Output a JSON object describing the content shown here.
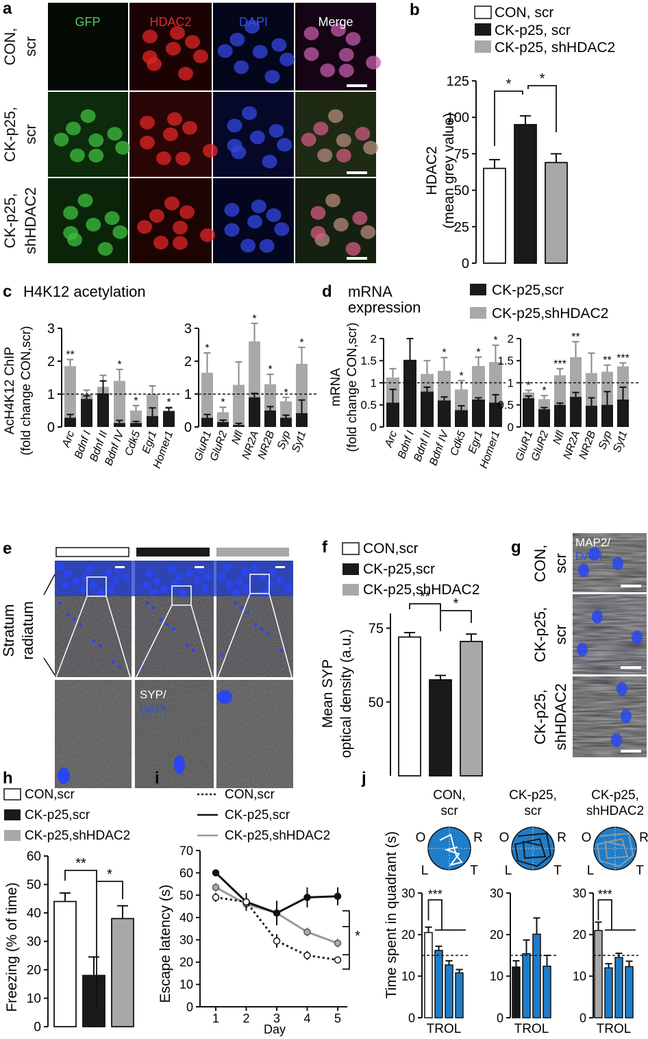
{
  "panel_labels": {
    "a": "a",
    "b": "b",
    "c": "c",
    "d": "d",
    "e": "e",
    "f": "f",
    "g": "g",
    "h": "h",
    "i": "i",
    "j": "j"
  },
  "panel_a": {
    "columns": [
      "GFP",
      "HDAC2",
      "DAPI",
      "Merge"
    ],
    "row_labels": [
      [
        "CON,",
        "scr"
      ],
      [
        "CK-p25,",
        "scr"
      ],
      [
        "CK-p25,",
        "shHDAC2"
      ]
    ],
    "colors": {
      "GFP": "#4fd14f",
      "HDAC2": "#e12a2a",
      "DAPI": "#3a4fd8",
      "Merge": "#ffffff"
    }
  },
  "legends": {
    "con_space": "CON, scr",
    "ck_space": "CK-p25, scr",
    "sh_space": "CK-p25, shHDAC2",
    "con": "CON,scr",
    "ck": "CK-p25,scr",
    "sh": "CK-p25,shHDAC2"
  },
  "titles": {
    "c": "H4K12 acetylation",
    "d_line1": "mRNA",
    "d_line2": "expression"
  },
  "axis_labels": {
    "b_line1": "HDAC2",
    "b_line2": "(mean grey value)",
    "c_line1": "AcH4K12 ChIP",
    "c_line2": "(fold change CON,scr)",
    "d_line1": "mRNA",
    "d_line2": "(fold change CON,scr)",
    "f_line1": "Mean SYP",
    "f_line2": "optical density (a.u.)",
    "h": "Freezing (% of time)",
    "i_y": "Escape latency (s)",
    "i_x": "Day",
    "j": "Time spent in quadrant (s)"
  },
  "panel_e": {
    "side_label_1": "Stratum",
    "side_label_2": "radiatum",
    "inset_label_1": "SYP/",
    "inset_label_2": "DAPI"
  },
  "panel_g": {
    "overlay_1": "MAP2/",
    "overlay_2": "DAPI",
    "row_labels": [
      [
        "CON,",
        "scr"
      ],
      [
        "CK-p25,",
        "scr"
      ],
      [
        "CK-p25,",
        "shHDAC2"
      ]
    ]
  },
  "panel_j": {
    "group_labels": [
      [
        "CON,",
        "scr"
      ],
      [
        "CK-p25,",
        "scr"
      ],
      [
        "CK-p25,",
        "shHDAC2"
      ]
    ],
    "quadrant_letters": {
      "O": "O",
      "R": "R",
      "L": "L",
      "T": "T"
    },
    "x_label": "TROL",
    "sig": "***"
  },
  "chart_data": [
    {
      "id": "b",
      "type": "bar",
      "categories": [
        "CON, scr",
        "CK-p25, scr",
        "CK-p25, shHDAC2"
      ],
      "values": [
        65,
        95,
        69
      ],
      "errors": [
        6,
        6,
        6
      ],
      "yticks": [
        0,
        25,
        50,
        75,
        100,
        125
      ],
      "ylim": [
        0,
        125
      ],
      "significance": [
        "*",
        "*"
      ],
      "colors": [
        "#ffffff",
        "#1a1a1a",
        "#a8a8a8"
      ]
    },
    {
      "id": "c-left",
      "type": "bar",
      "categories": [
        "Arc",
        "Bdnf I",
        "Bdnf II",
        "Bdnf IV",
        "Cdk5",
        "Egr1",
        "Homer1"
      ],
      "series": [
        {
          "values": [
            1.85,
            1.0,
            1.22,
            1.4,
            0.5,
            1.0,
            0.5
          ],
          "errors": [
            0.2,
            0.12,
            0.35,
            0.35,
            0.15,
            0.25,
            0.1
          ]
        },
        {
          "values": [
            0.28,
            0.85,
            1.02,
            0.12,
            0.12,
            0.33,
            0.48
          ],
          "errors": [
            0.1,
            0.1,
            0.38,
            0.08,
            0.05,
            0.25,
            0.1
          ]
        }
      ],
      "stars": [
        "**",
        "",
        "",
        "*",
        "*",
        "",
        "*"
      ],
      "yticks": [
        0,
        1,
        2,
        3
      ],
      "ylim": [
        0,
        3
      ],
      "reference": 1
    },
    {
      "id": "c-right",
      "type": "bar",
      "categories": [
        "GluR1",
        "GluR2",
        "Nfl",
        "NR2A",
        "NR2B",
        "Syp",
        "Syt1"
      ],
      "series": [
        {
          "values": [
            1.65,
            0.45,
            1.28,
            2.6,
            1.3,
            0.78,
            1.92
          ],
          "errors": [
            0.6,
            0.15,
            0.7,
            0.55,
            0.3,
            0.12,
            0.5
          ]
        },
        {
          "values": [
            0.28,
            0.15,
            0.06,
            0.9,
            0.5,
            0.28,
            0.42
          ],
          "errors": [
            0.1,
            0.06,
            0.05,
            0.12,
            0.12,
            0.08,
            0.4
          ]
        }
      ],
      "stars": [
        "*",
        "*",
        "",
        "*",
        "*",
        "*",
        "*"
      ],
      "yticks": [
        0,
        1,
        2,
        3
      ],
      "ylim": [
        0,
        3
      ],
      "reference": 1
    },
    {
      "id": "d-left",
      "type": "bar",
      "categories": [
        "Arc",
        "Bdnf I",
        "Bdnf II",
        "Bdnf IV",
        "Cdk5",
        "Egr1",
        "Homer1"
      ],
      "series": [
        {
          "name": "CK-p25,shHDAC2",
          "values": [
            1.12,
            0,
            1.2,
            1.27,
            0.85,
            1.38,
            1.47
          ],
          "errors": [
            0.2,
            0,
            0.3,
            0.3,
            0.2,
            0.2,
            0.38
          ]
        },
        {
          "name": "CK-p25,scr",
          "values": [
            0.55,
            1.52,
            0.8,
            0.6,
            0.38,
            0.62,
            0.55
          ],
          "errors": [
            0.3,
            0.48,
            0.1,
            0.08,
            0.1,
            0.04,
            0.18
          ]
        }
      ],
      "stars": [
        "",
        "",
        "",
        "*",
        "*",
        "*",
        "*"
      ],
      "yticks": [
        0,
        0.5,
        1,
        1.5,
        2
      ],
      "ylim": [
        0,
        2
      ],
      "reference": 1
    },
    {
      "id": "d-right",
      "type": "bar",
      "categories": [
        "GluR1",
        "GluR2",
        "Nfl",
        "NR2A",
        "NR2B",
        "Syp",
        "Syt1"
      ],
      "series": [
        {
          "name": "CK-p25,shHDAC2",
          "values": [
            0.78,
            0.63,
            1.17,
            1.58,
            1.22,
            1.25,
            1.37
          ],
          "errors": [
            0.05,
            0.08,
            0.15,
            0.35,
            0.45,
            0.15,
            0.08
          ]
        },
        {
          "name": "CK-p25,scr",
          "values": [
            0.65,
            0.4,
            0.5,
            0.68,
            0.48,
            0.5,
            0.62
          ],
          "errors": [
            0.05,
            0.04,
            0.04,
            0.1,
            0.18,
            0.3,
            0.28
          ]
        }
      ],
      "stars": [
        "*",
        "*",
        "***",
        "**",
        "",
        "**",
        "***"
      ],
      "yticks": [
        0,
        0.5,
        1,
        1.5,
        2
      ],
      "ylim": [
        0,
        2
      ],
      "reference": 1
    },
    {
      "id": "f",
      "type": "bar",
      "categories": [
        "CON,scr",
        "CK-p25,scr",
        "CK-p25,shHDAC2"
      ],
      "values": [
        72,
        57.5,
        70.5
      ],
      "errors": [
        1.5,
        1.5,
        2.5
      ],
      "yticks": [
        50,
        75
      ],
      "ylim": [
        25,
        80
      ],
      "significance": [
        "**",
        "*"
      ],
      "colors": [
        "#ffffff",
        "#1a1a1a",
        "#a8a8a8"
      ]
    },
    {
      "id": "h",
      "type": "bar",
      "categories": [
        "CON,scr",
        "CK-p25,scr",
        "CK-p25,shHDAC2"
      ],
      "values": [
        44,
        18,
        38
      ],
      "errors": [
        3,
        6.5,
        4.5
      ],
      "yticks": [
        0,
        10,
        20,
        30,
        40,
        50,
        60
      ],
      "ylim": [
        0,
        60
      ],
      "significance": [
        "**",
        "*"
      ],
      "colors": [
        "#ffffff",
        "#1a1a1a",
        "#a8a8a8"
      ]
    },
    {
      "id": "i",
      "type": "line",
      "x": [
        1,
        2,
        3,
        4,
        5
      ],
      "series": [
        {
          "name": "CON,scr",
          "values": [
            49,
            47,
            29.5,
            23,
            21
          ],
          "errors": [
            2,
            2,
            3,
            2,
            1.5
          ],
          "style": "dotted",
          "color": "#111111",
          "marker": "open"
        },
        {
          "name": "CK-p25,scr",
          "values": [
            60,
            47,
            42,
            49,
            49.5
          ],
          "errors": [
            1.5,
            4,
            5.5,
            4.5,
            4
          ],
          "style": "solid",
          "color": "#111111",
          "marker": "filled"
        },
        {
          "name": "CK-p25,shHDAC2",
          "values": [
            53.5,
            46,
            42,
            33.5,
            28.5
          ],
          "errors": [
            2,
            2,
            3,
            2,
            2
          ],
          "style": "solid",
          "color": "#999999",
          "marker": "grey"
        }
      ],
      "xticks": [
        1,
        2,
        3,
        4,
        5
      ],
      "yticks": [
        0,
        10,
        20,
        30,
        40,
        50,
        60,
        70
      ],
      "ylim": [
        0,
        70
      ],
      "significance": "*"
    },
    {
      "id": "j",
      "type": "bar",
      "groups": [
        "CON, scr",
        "CK-p25, scr",
        "CK-p25, shHDAC2"
      ],
      "categories": [
        "T",
        "R",
        "O",
        "L"
      ],
      "values": [
        [
          20.5,
          16.2,
          12.7,
          10.8
        ],
        [
          12.2,
          15.4,
          20.1,
          12.4
        ],
        [
          21,
          12,
          14.5,
          12.3
        ]
      ],
      "errors": [
        [
          1.3,
          1,
          1,
          0.8
        ],
        [
          1.5,
          3.3,
          3.9,
          2.6
        ],
        [
          2,
          1,
          1,
          1.3
        ]
      ],
      "reference": 15,
      "yticks": [
        0,
        10,
        20,
        30
      ],
      "ylim": [
        0,
        30
      ],
      "colors": {
        "T": [
          "#ffffff",
          "#1a1a1a",
          "#a8a8a8"
        ],
        "other": "#1f7dc9"
      }
    }
  ]
}
